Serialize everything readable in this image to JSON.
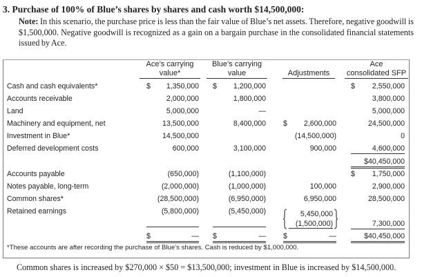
{
  "title": "3.  Purchase of 100% of Blue’s shares by shares and cash worth $14,500,000:",
  "note": {
    "label": "Note:",
    "text": " In this scenario, the purchase price is less than the fair value of Blue’s net assets. Therefore, negative goodwill is $1,500,000. Negative goodwill is recognized as a gain on a bargain purchase in the consolidated financial statements issued by Ace."
  },
  "table": {
    "headers": [
      {
        "line1": "Ace’s carrying",
        "line2": "value*"
      },
      {
        "line1": "Blue’s carrying",
        "line2": "value"
      },
      {
        "line1": "",
        "line2": "Adjustments"
      },
      {
        "line1": "Ace",
        "line2": "consolidated SFP"
      }
    ],
    "rows": [
      {
        "label": "Cash and cash equivalents*",
        "values": [
          "$ 1,350,000",
          "$ 1,200,000",
          "",
          "$ 2,550,000"
        ]
      },
      {
        "label": "Accounts receivable",
        "values": [
          "2,000,000",
          "1,800,000",
          "",
          "3,800,000"
        ]
      },
      {
        "label": "Land",
        "values": [
          "5,000,000",
          "—",
          "",
          "5,000,000"
        ]
      },
      {
        "label": "Machinery and equipment, net",
        "values": [
          "13,500,000",
          "8,400,000",
          "$ 2,600,000",
          "24,500,000"
        ]
      },
      {
        "label": "Investment in Blue*",
        "values": [
          "14,500,000",
          "",
          "(14,500,000)",
          "0"
        ]
      },
      {
        "label": "Deferred development costs",
        "values": [
          "600,000",
          "3,100,000",
          "900,000",
          "4,600,000"
        ]
      },
      {
        "label": "",
        "values": [
          "",
          "",
          "",
          "$40,450,000"
        ]
      },
      {
        "label": "Accounts payable",
        "values": [
          "(650,000)",
          "(1,100,000)",
          "",
          "$ 1,750,000"
        ]
      },
      {
        "label": "Notes payable, long-term",
        "values": [
          "(2,000,000)",
          "(1,000,000)",
          "100,000",
          "2,900,000"
        ]
      },
      {
        "label": "Common shares*",
        "values": [
          "(28,500,000)",
          "(6,950,000)",
          "6,950,000",
          "28,500,000"
        ]
      },
      {
        "label": "Retained earnings",
        "values": [
          "(5,800,000)",
          "(5,450,000)",
          "",
          ""
        ]
      },
      {
        "label": "",
        "values": [
          "",
          "",
          "",
          "7,300,000"
        ]
      },
      {
        "label": "",
        "values": [
          "$ —",
          "$ —",
          "$ —",
          "$40,450,000"
        ]
      }
    ],
    "retained_adjustments": [
      "5,450,000",
      "(1,500,000)"
    ],
    "footnote": "*These accounts are after recording the purchase of Blue’s shares. Cash is reduced by $1,000,000."
  },
  "bottom_text": "Common shares is increased by $270,000 × $50 = $13,500,000; investment in Blue is increased by $14,500,000."
}
